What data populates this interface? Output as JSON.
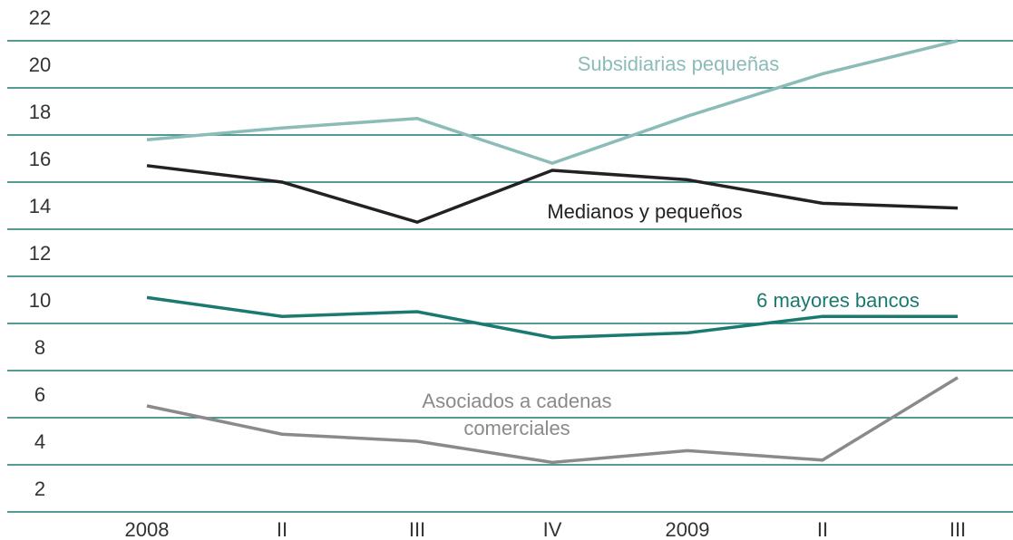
{
  "chart_data": {
    "type": "line",
    "categories": [
      "2008",
      "II",
      "III",
      "IV",
      "2009",
      "II",
      "III"
    ],
    "series": [
      {
        "name": "Subsidiarias pequeñas",
        "color": "#8bbcb8",
        "values": [
          17.8,
          18.3,
          18.7,
          16.8,
          18.8,
          20.6,
          22.0
        ]
      },
      {
        "name": "Medianos y pequeños",
        "color": "#222222",
        "values": [
          16.7,
          16.0,
          14.3,
          16.5,
          16.1,
          15.1,
          14.9
        ]
      },
      {
        "name": "6 mayores bancos",
        "color": "#1a7a70",
        "values": [
          11.1,
          10.3,
          10.5,
          9.4,
          9.6,
          10.3,
          10.3
        ]
      },
      {
        "name": "Asociados a cadenas\ncomerciales",
        "color": "#8a8a8a",
        "values": [
          6.5,
          5.3,
          5.0,
          4.1,
          4.6,
          4.2,
          7.7
        ]
      }
    ],
    "ylim": [
      2,
      22
    ],
    "yticks": [
      2,
      4,
      6,
      8,
      10,
      12,
      14,
      16,
      18,
      20,
      22
    ],
    "grid": true,
    "grid_color": "#1a7a70"
  }
}
